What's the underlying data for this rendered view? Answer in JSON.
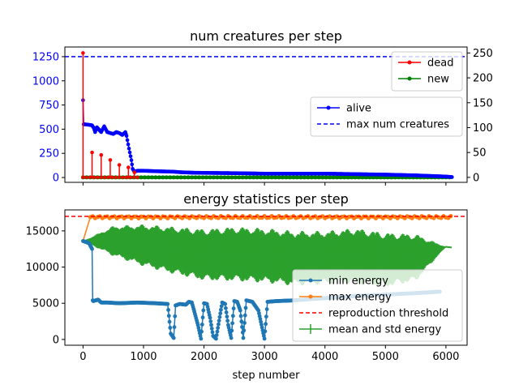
{
  "chart_data": [
    {
      "type": "line",
      "title": "num creatures per step",
      "xlim": [
        -300,
        6350
      ],
      "ylim_left": [
        -50,
        1350
      ],
      "ylim_right": [
        -10,
        262
      ],
      "left_ticks": [
        0,
        250,
        500,
        750,
        1000,
        1250
      ],
      "right_ticks": [
        0,
        50,
        100,
        150,
        200,
        250
      ],
      "left_tick_color": "#0000ff",
      "grid": false,
      "legends": [
        {
          "placement": "upper-right",
          "entries": [
            "dead",
            "new"
          ]
        },
        {
          "placement": "center-right",
          "entries": [
            "alive",
            "max num creatures"
          ]
        }
      ],
      "series": [
        {
          "name": "alive",
          "axis": "left",
          "color": "#0000ff",
          "style": "line-marker",
          "x": [
            0,
            10,
            20,
            30,
            100,
            150,
            180,
            200,
            230,
            300,
            350,
            400,
            500,
            550,
            600,
            650,
            700,
            720,
            760,
            800,
            820,
            850,
            900,
            1000,
            1200,
            1500,
            1600,
            1800,
            2000,
            2500,
            3000,
            4000,
            4500,
            5000,
            5500,
            6000,
            6100
          ],
          "y": [
            800,
            550,
            550,
            550,
            545,
            540,
            510,
            470,
            520,
            470,
            530,
            470,
            450,
            470,
            460,
            440,
            470,
            430,
            300,
            180,
            90,
            60,
            70,
            70,
            65,
            60,
            55,
            50,
            48,
            45,
            40,
            40,
            35,
            30,
            22,
            10,
            5
          ]
        },
        {
          "name": "max num creatures",
          "axis": "left",
          "color": "#0000ff",
          "style": "dashed",
          "y": 1250
        },
        {
          "name": "dead",
          "axis": "right",
          "color": "#ff0000",
          "style": "spikes",
          "spikes": [
            [
              0,
              250
            ],
            [
              150,
              50
            ],
            [
              300,
              45
            ],
            [
              450,
              35
            ],
            [
              600,
              25
            ],
            [
              750,
              20
            ],
            [
              850,
              10
            ]
          ]
        },
        {
          "name": "new",
          "axis": "right",
          "color": "#008000",
          "style": "line-marker",
          "y": 0
        }
      ]
    },
    {
      "type": "line",
      "title": "energy statistics per step",
      "xlabel": "step number",
      "xlim": [
        -300,
        6350
      ],
      "ylim": [
        -800,
        17900
      ],
      "x_ticks": [
        0,
        1000,
        2000,
        3000,
        4000,
        5000,
        6000
      ],
      "y_ticks": [
        0,
        5000,
        10000,
        15000
      ],
      "grid": false,
      "legend": {
        "placement": "lower-right",
        "entries": [
          "min energy",
          "max energy",
          "reproduction threshold",
          "mean and std energy"
        ]
      },
      "series": [
        {
          "name": "min energy",
          "color": "#1f77b4",
          "style": "line-marker",
          "x": [
            0,
            100,
            150,
            160,
            170,
            250,
            300,
            400,
            600,
            900,
            1200,
            1400,
            1450,
            1500,
            1530,
            1600,
            1700,
            1750,
            1800,
            1900,
            1950,
            2000,
            2050,
            2100,
            2150,
            2200,
            2300,
            2350,
            2400,
            2450,
            2500,
            2550,
            2600,
            2650,
            2700,
            2750,
            2800,
            2900,
            3000,
            3050,
            3200,
            3500,
            3800,
            4000,
            4500,
            5000,
            5500,
            5900
          ],
          "y": [
            13600,
            13300,
            12500,
            5400,
            5300,
            5500,
            5100,
            5100,
            5000,
            5100,
            5000,
            4900,
            800,
            200,
            4700,
            4900,
            4800,
            5200,
            5100,
            2000,
            100,
            5000,
            4900,
            3000,
            500,
            100,
            5100,
            4900,
            2000,
            200,
            5300,
            5200,
            4000,
            200,
            5400,
            5300,
            5200,
            4000,
            100,
            5200,
            5300,
            5400,
            5600,
            5700,
            6000,
            6200,
            6400,
            6600
          ]
        },
        {
          "name": "max energy",
          "color": "#ff7f0e",
          "style": "line-marker",
          "x_range": [
            0,
            6100
          ],
          "y_start": 13600,
          "y": 16900
        },
        {
          "name": "reproduction threshold",
          "color": "#ff0000",
          "style": "dashed",
          "y": 17000
        },
        {
          "name": "mean and std energy",
          "color": "#2ca02c",
          "style": "errorbar",
          "x": [
            0,
            500,
            1000,
            1500,
            2000,
            2500,
            3000,
            3500,
            4000,
            4500,
            5000,
            5500,
            6000,
            6100
          ],
          "mean": [
            13600,
            13600,
            13000,
            12300,
            11700,
            11800,
            11600,
            11200,
            11300,
            11500,
            11000,
            11300,
            12800,
            12700
          ],
          "std": [
            0,
            2100,
            2900,
            3300,
            3600,
            3800,
            3800,
            3800,
            3700,
            3900,
            3800,
            3300,
            0,
            0
          ]
        }
      ]
    }
  ]
}
